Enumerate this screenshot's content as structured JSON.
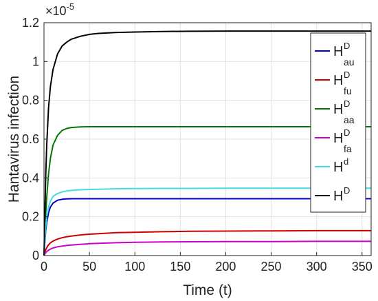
{
  "chart_data": {
    "type": "line",
    "title": "",
    "xlabel": "Time (t)",
    "ylabel": "Hantavirus infection",
    "y_multiplier": "×10",
    "y_multiplier_exponent": "-5",
    "xlim": [
      0,
      360
    ],
    "ylim": [
      0,
      1.2
    ],
    "xticks": [
      0,
      50,
      100,
      150,
      200,
      250,
      300,
      350
    ],
    "yticks": [
      0,
      0.2,
      0.4,
      0.6,
      0.8,
      1,
      1.2
    ],
    "grid": true,
    "legend_position": "top-right",
    "x": [
      0,
      1,
      2,
      3,
      5,
      7,
      10,
      15,
      20,
      25,
      30,
      40,
      50,
      60,
      80,
      100,
      130,
      160,
      200,
      250,
      300,
      360
    ],
    "series": [
      {
        "name": "H",
        "sub": "au",
        "sup": "D",
        "color": "#0000cc",
        "values": [
          0,
          0.07,
          0.13,
          0.17,
          0.22,
          0.25,
          0.27,
          0.285,
          0.29,
          0.292,
          0.293,
          0.293,
          0.293,
          0.293,
          0.293,
          0.293,
          0.293,
          0.293,
          0.293,
          0.293,
          0.293,
          0.293
        ]
      },
      {
        "name": "H",
        "sub": "fu",
        "sup": "D",
        "color": "#cc0000",
        "values": [
          0,
          0.015,
          0.03,
          0.04,
          0.055,
          0.065,
          0.075,
          0.085,
          0.092,
          0.097,
          0.1,
          0.106,
          0.11,
          0.113,
          0.118,
          0.12,
          0.123,
          0.125,
          0.126,
          0.127,
          0.128,
          0.128
        ]
      },
      {
        "name": "H",
        "sub": "aa",
        "sup": "D",
        "color": "#007700",
        "values": [
          0,
          0.12,
          0.22,
          0.3,
          0.42,
          0.5,
          0.57,
          0.62,
          0.645,
          0.655,
          0.66,
          0.663,
          0.664,
          0.664,
          0.664,
          0.664,
          0.664,
          0.664,
          0.664,
          0.664,
          0.664,
          0.664
        ]
      },
      {
        "name": "H",
        "sub": "fa",
        "sup": "D",
        "color": "#cc00cc",
        "values": [
          0,
          0.008,
          0.015,
          0.02,
          0.028,
          0.033,
          0.039,
          0.045,
          0.049,
          0.052,
          0.054,
          0.058,
          0.061,
          0.063,
          0.066,
          0.068,
          0.07,
          0.071,
          0.072,
          0.072,
          0.073,
          0.073
        ]
      },
      {
        "name": "H",
        "sub": "",
        "sup": "d",
        "color": "#44dddd",
        "values": [
          0,
          0.08,
          0.15,
          0.2,
          0.25,
          0.28,
          0.305,
          0.32,
          0.328,
          0.333,
          0.336,
          0.339,
          0.341,
          0.342,
          0.344,
          0.345,
          0.346,
          0.346,
          0.347,
          0.347,
          0.347,
          0.347
        ]
      },
      {
        "name": "H",
        "sub": "",
        "sup": "D",
        "color": "#000000",
        "values": [
          0,
          0.22,
          0.42,
          0.57,
          0.76,
          0.87,
          0.96,
          1.04,
          1.08,
          1.1,
          1.115,
          1.13,
          1.14,
          1.145,
          1.15,
          1.152,
          1.155,
          1.156,
          1.157,
          1.157,
          1.157,
          1.157
        ]
      }
    ]
  }
}
